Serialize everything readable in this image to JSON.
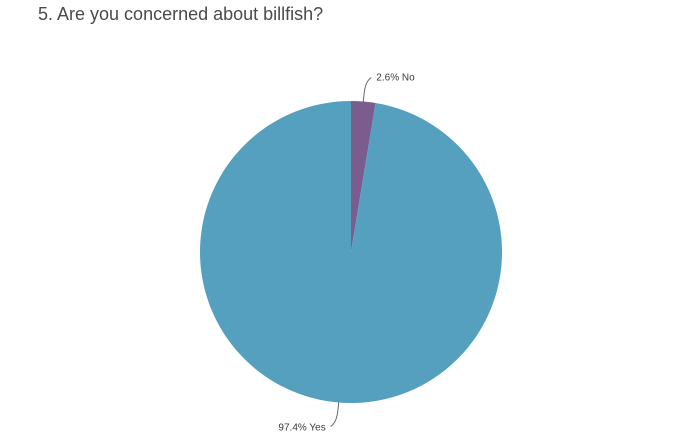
{
  "chart_data": {
    "type": "pie",
    "title": "5. Are you concerned about billfish?",
    "slices": [
      {
        "label": "No",
        "value": 2.6,
        "display": "2.6% No",
        "color": "#7b5c8e"
      },
      {
        "label": "Yes",
        "value": 97.4,
        "display": "97.4% Yes",
        "color": "#55a0bf"
      }
    ],
    "legend": "none",
    "start_angle_deg": 0,
    "direction": "clockwise"
  }
}
